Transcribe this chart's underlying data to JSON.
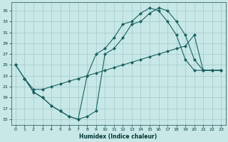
{
  "xlabel": "Humidex (Indice chaleur)",
  "bg_color": "#c8e8e8",
  "grid_color": "#a0c8c8",
  "line_color": "#1a6060",
  "xlim": [
    -0.5,
    23.5
  ],
  "ylim": [
    14.0,
    36.5
  ],
  "yticks": [
    15,
    17,
    19,
    21,
    23,
    25,
    27,
    29,
    31,
    33,
    35
  ],
  "xticks": [
    0,
    1,
    2,
    3,
    4,
    5,
    6,
    7,
    8,
    9,
    10,
    11,
    12,
    13,
    14,
    15,
    16,
    17,
    18,
    19,
    20,
    21,
    22,
    23
  ],
  "xa": [
    0,
    1,
    2,
    3,
    4,
    5,
    6,
    7,
    8,
    9,
    10,
    11,
    12,
    13,
    14,
    15,
    16,
    17,
    18,
    19,
    20,
    21,
    22,
    23
  ],
  "ya": [
    25,
    22.5,
    20,
    19,
    17.5,
    16.5,
    15.5,
    15,
    15.5,
    16.5,
    27,
    28,
    30,
    32.5,
    33,
    34.5,
    35.5,
    35,
    33,
    30.5,
    26,
    24,
    24,
    24
  ],
  "xb": [
    0,
    1,
    2,
    3,
    4,
    5,
    6,
    7,
    8,
    9,
    10,
    11,
    12,
    13,
    14,
    15,
    16,
    17,
    18,
    19,
    20,
    21,
    22,
    23
  ],
  "yb": [
    25,
    22.5,
    20,
    19,
    17.5,
    16.5,
    15.5,
    15,
    23,
    27,
    28,
    30,
    32.5,
    33,
    34.5,
    35.5,
    35,
    33,
    30.5,
    26,
    24,
    24,
    24,
    24
  ],
  "xc": [
    1,
    2,
    3,
    4,
    5,
    6,
    7,
    8,
    9,
    10,
    11,
    12,
    13,
    14,
    15,
    16,
    17,
    18,
    19,
    20,
    21,
    22,
    23
  ],
  "yc": [
    22.5,
    20.5,
    20.5,
    21,
    21.5,
    22,
    22.5,
    23,
    23.5,
    24,
    24.5,
    25,
    25.5,
    26,
    26.5,
    27,
    27.5,
    28,
    28.5,
    30.5,
    24,
    24,
    24
  ]
}
